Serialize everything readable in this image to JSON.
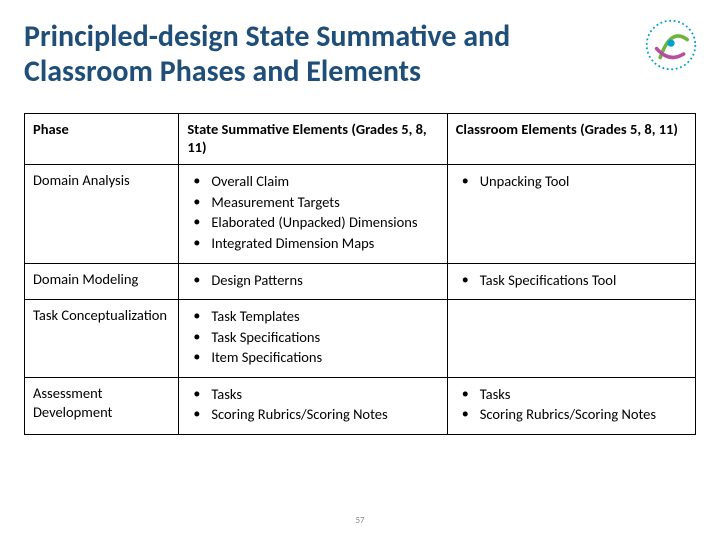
{
  "title": "Principled-design State Summative and Classroom Phases and Elements",
  "page_number": "57",
  "colors": {
    "title": "#1f4e79",
    "border": "#000000",
    "text": "#000000",
    "background": "#ffffff",
    "pagenum": "#8a8a8a",
    "logo_outer": "#00a0d2",
    "logo_arc1": "#6eb43f",
    "logo_arc2": "#b84f9e"
  },
  "table": {
    "headers": {
      "col1": "Phase",
      "col2": "State Summative Elements (Grades 5, 8, 11)",
      "col3": "Classroom Elements (Grades 5, 8, 11)"
    },
    "rows": [
      {
        "phase": "Domain Analysis",
        "state": [
          "Overall Claim",
          "Measurement Targets",
          "Elaborated (Unpacked) Dimensions",
          "Integrated Dimension Maps"
        ],
        "classroom": [
          "Unpacking Tool"
        ]
      },
      {
        "phase": "Domain Modeling",
        "state": [
          "Design Patterns"
        ],
        "classroom": [
          "Task Specifications Tool"
        ]
      },
      {
        "phase": "Task Conceptualization",
        "state": [
          "Task Templates",
          "Task Specifications",
          "Item Specifications"
        ],
        "classroom": []
      },
      {
        "phase": "Assessment Development",
        "state": [
          "Tasks",
          "Scoring Rubrics/Scoring Notes"
        ],
        "classroom": [
          "Tasks",
          "Scoring Rubrics/Scoring Notes"
        ]
      }
    ]
  }
}
